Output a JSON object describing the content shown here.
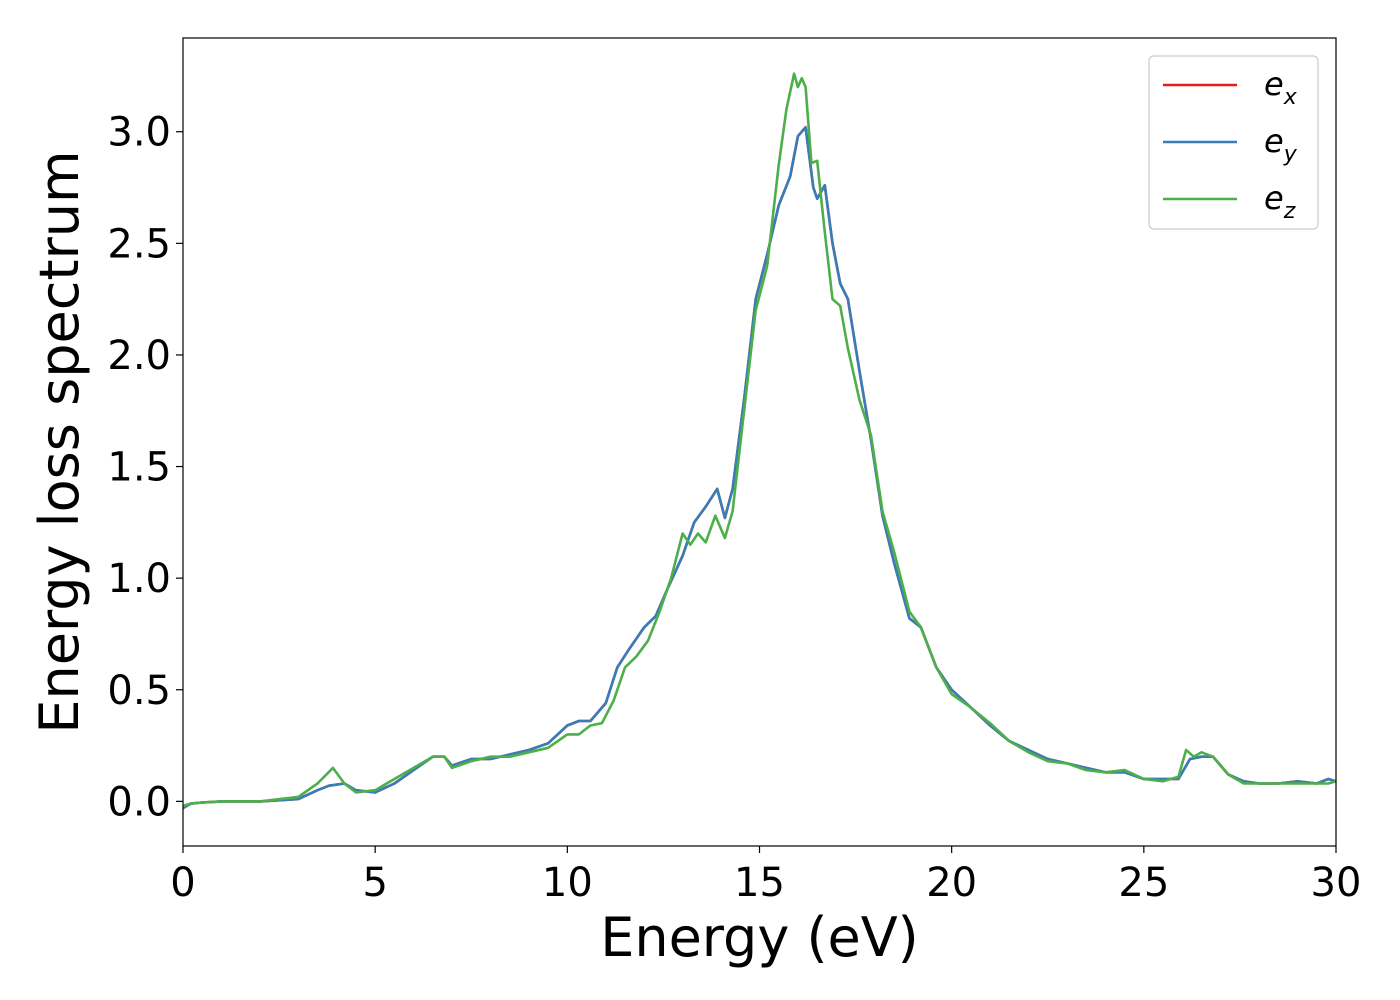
{
  "chart_data": {
    "type": "line",
    "title": "",
    "xlabel": "Energy (eV)",
    "ylabel": "Energy loss spectrum",
    "xlim": [
      0,
      30
    ],
    "ylim": [
      -0.2,
      3.42
    ],
    "xticks": [
      0,
      5,
      10,
      15,
      20,
      25,
      30
    ],
    "xtick_labels": [
      "0",
      "5",
      "10",
      "15",
      "20",
      "25",
      "30"
    ],
    "yticks": [
      0.0,
      0.5,
      1.0,
      1.5,
      2.0,
      2.5,
      3.0
    ],
    "ytick_labels": [
      "0.0",
      "0.5",
      "1.0",
      "1.5",
      "2.0",
      "2.5",
      "3.0"
    ],
    "grid": false,
    "legend_position": "top-right",
    "colors": {
      "ex": "#e41a1c",
      "ey": "#377eb8",
      "ez": "#4daf4a"
    },
    "series": [
      {
        "name": "e_x",
        "label_main": "e",
        "label_sub": "x",
        "color": "#e41a1c",
        "x": [
          0,
          0.2,
          0.5,
          1,
          2,
          3,
          3.5,
          3.8,
          4.2,
          4.5,
          5,
          5.5,
          6,
          6.5,
          6.8,
          7,
          7.5,
          8,
          8.5,
          9,
          9.5,
          10,
          10.3,
          10.6,
          11,
          11.3,
          11.6,
          12,
          12.3,
          12.6,
          13,
          13.3,
          13.6,
          13.9,
          14.1,
          14.3,
          14.6,
          14.9,
          15.2,
          15.5,
          15.8,
          16.0,
          16.2,
          16.4,
          16.5,
          16.7,
          16.9,
          17.1,
          17.3,
          17.6,
          17.9,
          18.2,
          18.5,
          18.9,
          19.2,
          19.6,
          20,
          20.5,
          21,
          21.5,
          22,
          22.5,
          23,
          23.5,
          24,
          24.5,
          25,
          25.5,
          25.9,
          26.2,
          26.5,
          26.8,
          27.2,
          27.6,
          28,
          28.5,
          29,
          29.5,
          29.8,
          30
        ],
        "y": [
          -0.03,
          -0.01,
          -0.005,
          0,
          0,
          0.01,
          0.05,
          0.07,
          0.08,
          0.05,
          0.04,
          0.08,
          0.14,
          0.2,
          0.2,
          0.16,
          0.19,
          0.19,
          0.21,
          0.23,
          0.26,
          0.34,
          0.36,
          0.36,
          0.44,
          0.6,
          0.68,
          0.78,
          0.83,
          0.95,
          1.1,
          1.25,
          1.32,
          1.4,
          1.27,
          1.4,
          1.8,
          2.25,
          2.45,
          2.67,
          2.8,
          2.98,
          3.02,
          2.75,
          2.7,
          2.76,
          2.5,
          2.32,
          2.25,
          1.93,
          1.62,
          1.28,
          1.07,
          0.82,
          0.78,
          0.6,
          0.5,
          0.42,
          0.34,
          0.27,
          0.23,
          0.19,
          0.17,
          0.15,
          0.13,
          0.13,
          0.1,
          0.1,
          0.1,
          0.19,
          0.2,
          0.2,
          0.12,
          0.09,
          0.08,
          0.08,
          0.09,
          0.08,
          0.1,
          0.09
        ]
      },
      {
        "name": "e_y",
        "label_main": "e",
        "label_sub": "y",
        "color": "#377eb8",
        "x": [
          0,
          0.2,
          0.5,
          1,
          2,
          3,
          3.5,
          3.8,
          4.2,
          4.5,
          5,
          5.5,
          6,
          6.5,
          6.8,
          7,
          7.5,
          8,
          8.5,
          9,
          9.5,
          10,
          10.3,
          10.6,
          11,
          11.3,
          11.6,
          12,
          12.3,
          12.6,
          13,
          13.3,
          13.6,
          13.9,
          14.1,
          14.3,
          14.6,
          14.9,
          15.2,
          15.5,
          15.8,
          16.0,
          16.2,
          16.4,
          16.5,
          16.7,
          16.9,
          17.1,
          17.3,
          17.6,
          17.9,
          18.2,
          18.5,
          18.9,
          19.2,
          19.6,
          20,
          20.5,
          21,
          21.5,
          22,
          22.5,
          23,
          23.5,
          24,
          24.5,
          25,
          25.5,
          25.9,
          26.2,
          26.5,
          26.8,
          27.2,
          27.6,
          28,
          28.5,
          29,
          29.5,
          29.8,
          30
        ],
        "y": [
          -0.03,
          -0.01,
          -0.005,
          0,
          0,
          0.01,
          0.05,
          0.07,
          0.08,
          0.05,
          0.04,
          0.08,
          0.14,
          0.2,
          0.2,
          0.16,
          0.19,
          0.19,
          0.21,
          0.23,
          0.26,
          0.34,
          0.36,
          0.36,
          0.44,
          0.6,
          0.68,
          0.78,
          0.83,
          0.95,
          1.1,
          1.25,
          1.32,
          1.4,
          1.27,
          1.4,
          1.8,
          2.25,
          2.45,
          2.67,
          2.8,
          2.98,
          3.02,
          2.75,
          2.7,
          2.76,
          2.5,
          2.32,
          2.25,
          1.93,
          1.62,
          1.28,
          1.07,
          0.82,
          0.78,
          0.6,
          0.5,
          0.42,
          0.34,
          0.27,
          0.23,
          0.19,
          0.17,
          0.15,
          0.13,
          0.13,
          0.1,
          0.1,
          0.1,
          0.19,
          0.2,
          0.2,
          0.12,
          0.09,
          0.08,
          0.08,
          0.09,
          0.08,
          0.1,
          0.09
        ]
      },
      {
        "name": "e_z",
        "label_main": "e",
        "label_sub": "z",
        "color": "#4daf4a",
        "x": [
          0,
          0.2,
          0.5,
          1,
          2,
          3,
          3.5,
          3.9,
          4.2,
          4.5,
          5,
          5.5,
          6,
          6.5,
          6.8,
          7,
          7.5,
          8,
          8.5,
          9,
          9.5,
          10,
          10.3,
          10.6,
          10.9,
          11.2,
          11.5,
          11.8,
          12.1,
          12.4,
          12.7,
          13.0,
          13.2,
          13.4,
          13.6,
          13.85,
          14.1,
          14.3,
          14.6,
          14.9,
          15.2,
          15.5,
          15.7,
          15.9,
          16.0,
          16.1,
          16.2,
          16.35,
          16.5,
          16.7,
          16.9,
          17.1,
          17.3,
          17.6,
          17.9,
          18.2,
          18.5,
          18.9,
          19.2,
          19.6,
          20,
          20.5,
          21,
          21.5,
          22,
          22.5,
          23,
          23.5,
          24,
          24.5,
          25,
          25.5,
          25.9,
          26.1,
          26.3,
          26.5,
          26.8,
          27.2,
          27.6,
          28,
          28.5,
          29,
          29.5,
          29.8,
          30
        ],
        "y": [
          -0.02,
          -0.01,
          -0.005,
          0,
          0,
          0.02,
          0.08,
          0.15,
          0.08,
          0.04,
          0.05,
          0.1,
          0.15,
          0.2,
          0.2,
          0.15,
          0.18,
          0.2,
          0.2,
          0.22,
          0.24,
          0.3,
          0.3,
          0.34,
          0.35,
          0.45,
          0.6,
          0.65,
          0.72,
          0.85,
          1.0,
          1.2,
          1.15,
          1.2,
          1.16,
          1.28,
          1.18,
          1.3,
          1.75,
          2.2,
          2.4,
          2.85,
          3.1,
          3.26,
          3.2,
          3.24,
          3.2,
          2.86,
          2.87,
          2.55,
          2.25,
          2.22,
          2.03,
          1.8,
          1.64,
          1.3,
          1.12,
          0.85,
          0.78,
          0.6,
          0.48,
          0.42,
          0.35,
          0.27,
          0.22,
          0.18,
          0.17,
          0.14,
          0.13,
          0.14,
          0.1,
          0.09,
          0.11,
          0.23,
          0.2,
          0.22,
          0.2,
          0.12,
          0.08,
          0.08,
          0.08,
          0.08,
          0.08,
          0.08,
          0.09
        ]
      }
    ]
  }
}
